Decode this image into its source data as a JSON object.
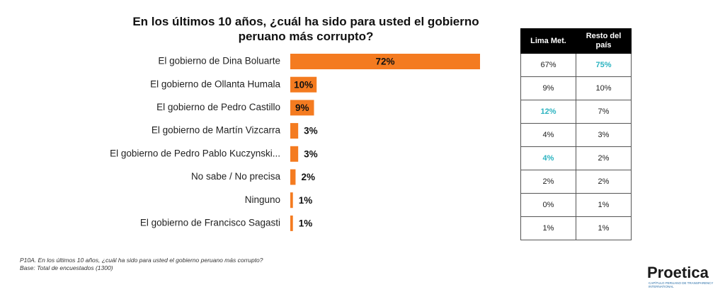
{
  "chart_data": {
    "type": "bar",
    "orientation": "horizontal",
    "title": "En los últimos 10 años, ¿cuál ha sido para usted el gobierno peruano más corrupto?",
    "categories": [
      "El gobierno de Dina Boluarte",
      "El gobierno de Ollanta Humala",
      "El gobierno de Pedro Castillo",
      "El gobierno de Martín Vizcarra",
      "El gobierno de Pedro Pablo Kuczynski...",
      "No sabe / No precisa",
      "Ninguno",
      "El gobierno de Francisco Sagasti"
    ],
    "values": [
      72,
      10,
      9,
      3,
      3,
      2,
      1,
      1
    ],
    "value_labels": [
      "72%",
      "10%",
      "9%",
      "3%",
      "3%",
      "2%",
      "1%",
      "1%"
    ],
    "color": "#f47b20"
  },
  "table": {
    "headers": [
      "Lima Met.",
      "Resto del país"
    ],
    "rows": [
      [
        "67%",
        {
          "text": "75%",
          "color": "#2bb3c0"
        }
      ],
      [
        "9%",
        "10%"
      ],
      [
        {
          "text": "12%",
          "color": "#2bb3c0"
        },
        "7%"
      ],
      [
        "4%",
        "3%"
      ],
      [
        {
          "text": "4%",
          "color": "#2bb3c0"
        },
        "2%"
      ],
      [
        "2%",
        "2%"
      ],
      [
        "0%",
        "1%"
      ],
      [
        "1%",
        "1%"
      ]
    ]
  },
  "footnotes": [
    "P10A. En los últimos 10 años, ¿cuál ha sido para usted el gobierno peruano más corrupto?",
    "Base: Total de encuestados  (1300)"
  ],
  "logo": {
    "name": "Proetica",
    "tagline": "CAPÍTULO PERUANO DE TRANSPARENCY INTERNATIONAL"
  }
}
